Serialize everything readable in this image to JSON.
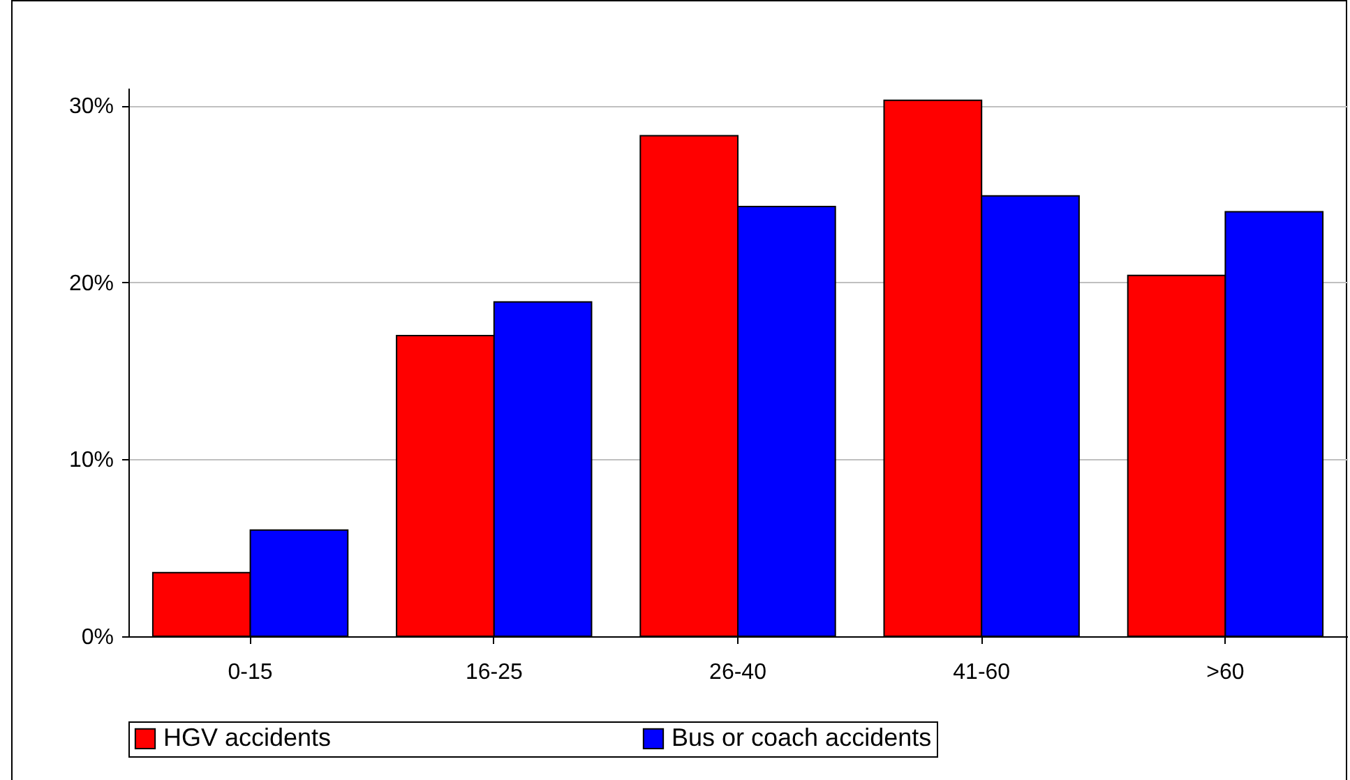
{
  "chart_data": {
    "type": "bar",
    "categories": [
      "0-15",
      "16-25",
      "26-40",
      "41-60",
      ">60"
    ],
    "series": [
      {
        "name": "HGV accidents",
        "color": "#ff0000",
        "values": [
          3.6,
          17.0,
          28.3,
          30.3,
          20.4
        ]
      },
      {
        "name": "Bus or coach accidents",
        "color": "#0000ff",
        "values": [
          6.0,
          18.9,
          24.3,
          24.9,
          24.0
        ]
      }
    ],
    "ylim": [
      0,
      31
    ],
    "yticks": [
      {
        "value": 0,
        "label": "0%"
      },
      {
        "value": 10,
        "label": "10%"
      },
      {
        "value": 20,
        "label": "20%"
      },
      {
        "value": 30,
        "label": "30%"
      }
    ],
    "grid": "y",
    "legend": "bottom"
  }
}
